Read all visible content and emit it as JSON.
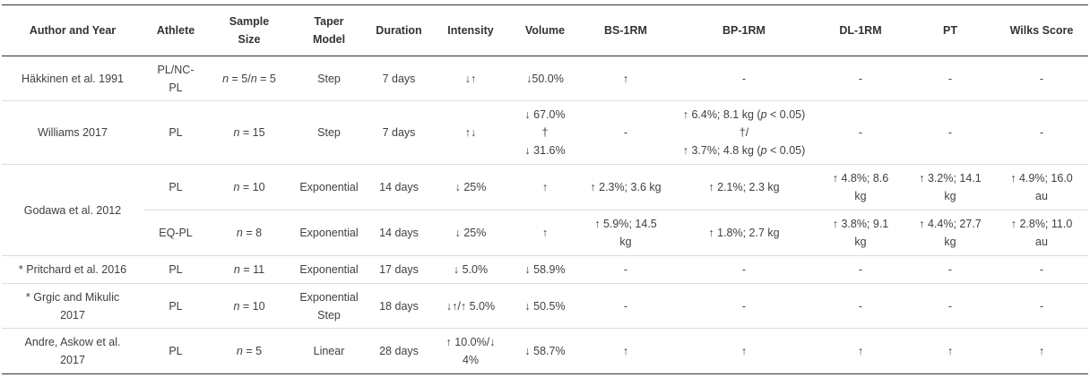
{
  "headers": [
    "Author and Year",
    "Athlete",
    "Sample Size",
    "Taper Model",
    "Duration",
    "Intensity",
    "Volume",
    "BS-1RM",
    "BP-1RM",
    "DL-1RM",
    "PT",
    "Wilks Score"
  ],
  "rows": [
    {
      "author": "Häkkinen et al. 1991",
      "athlete": "PL/NC-\nPL",
      "sample_n": "n",
      "sample_rest": " = 5/",
      "sample_n2": "n",
      "sample_rest2": " = 5",
      "model": "Step",
      "duration": "7 days",
      "intensity": "↓↑",
      "volume": "↓50.0%",
      "bs": "↑",
      "bp": "-",
      "dl": "-",
      "pt": "-",
      "wilks": "-"
    },
    {
      "author": "Williams 2017",
      "athlete": "PL",
      "sample_n": "n",
      "sample_rest": " = 15",
      "model": "Step",
      "duration": "7 days",
      "intensity": "↑↓",
      "volume": "↓ 67.0%\n†\n↓ 31.6%",
      "bs": "-",
      "bp_line1_a": "↑ 6.4%; 8.1 kg (",
      "bp_line1_p": "p",
      "bp_line1_b": " < 0.05)",
      "bp_line2": "†/",
      "bp_line3_a": "↑ 3.7%; 4.8 kg (",
      "bp_line3_p": "p",
      "bp_line3_b": " < 0.05)",
      "dl": "-",
      "pt": "-",
      "wilks": "-"
    },
    {
      "author": "Godawa et al. 2012",
      "athlete": "PL",
      "sample_n": "n",
      "sample_rest": " = 10",
      "model": "Exponential",
      "duration": "14 days",
      "intensity": "↓ 25%",
      "volume": "↑",
      "bs": "↑ 2.3%; 3.6 kg",
      "bp": "↑ 2.1%; 2.3 kg",
      "dl": "↑ 4.8%; 8.6\nkg",
      "pt": "↑ 3.2%; 14.1\nkg",
      "wilks": "↑ 4.9%; 16.0\nau"
    },
    {
      "athlete": "EQ-PL",
      "sample_n": "n",
      "sample_rest": " = 8",
      "model": "Exponential",
      "duration": "14 days",
      "intensity": "↓ 25%",
      "volume": "↑",
      "bs": "↑ 5.9%; 14.5\nkg",
      "bp": "↑ 1.8%; 2.7 kg",
      "dl": "↑ 3.8%; 9.1\nkg",
      "pt": "↑ 4.4%; 27.7\nkg",
      "wilks": "↑ 2.8%; 11.0\nau"
    },
    {
      "author": "* Pritchard et al. 2016",
      "athlete": "PL",
      "sample_n": "n",
      "sample_rest": " = 11",
      "model": "Exponential",
      "duration": "17 days",
      "intensity": "↓ 5.0%",
      "volume": "↓ 58.9%",
      "bs": "-",
      "bp": "-",
      "dl": "-",
      "pt": "-",
      "wilks": "-"
    },
    {
      "author": "* Grgic and Mikulic\n2017",
      "athlete": "PL",
      "sample_n": "n",
      "sample_rest": " = 10",
      "model": "Exponential\nStep",
      "duration": "18 days",
      "intensity": "↓↑/↑ 5.0%",
      "volume": "↓ 50.5%",
      "bs": "-",
      "bp": "-",
      "dl": "-",
      "pt": "-",
      "wilks": "-"
    },
    {
      "author": "Andre, Askow et al.\n2017",
      "athlete": "PL",
      "sample_n": "n",
      "sample_rest": " = 5",
      "model": "Linear",
      "duration": "28 days",
      "intensity": "↑ 10.0%/↓\n4%",
      "volume": "↓ 58.7%",
      "bs": "↑",
      "bp": "↑",
      "dl": "↑",
      "pt": "↑",
      "wilks": "↑"
    }
  ]
}
